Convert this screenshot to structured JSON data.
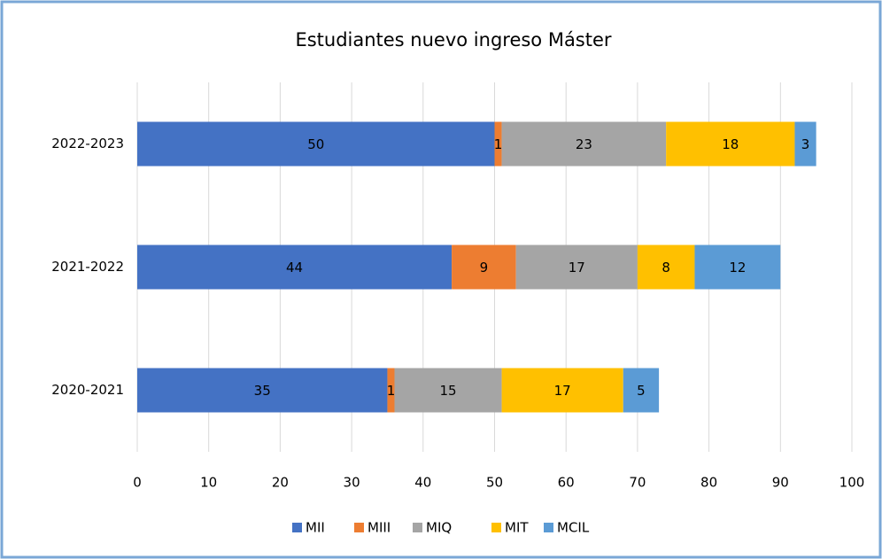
{
  "chart_data": {
    "type": "stacked_bar_horizontal",
    "title": "Estudiantes nuevo ingreso Máster",
    "categories": [
      "2022-2023",
      "2021-2022",
      "2020-2021"
    ],
    "series": [
      {
        "name": "MII",
        "color": "#4472c4",
        "values": [
          50,
          44,
          35
        ]
      },
      {
        "name": "MIII",
        "color": "#ed7d31",
        "values": [
          1,
          9,
          1
        ]
      },
      {
        "name": "MIQ",
        "color": "#a5a5a5",
        "values": [
          23,
          17,
          15
        ]
      },
      {
        "name": "MIT",
        "color": "#ffc000",
        "values": [
          18,
          8,
          17
        ]
      },
      {
        "name": "MCIL",
        "color": "#5b9bd5",
        "values": [
          3,
          12,
          5
        ]
      }
    ],
    "xlim": [
      0,
      100
    ],
    "xticks": [
      0,
      10,
      20,
      30,
      40,
      50,
      60,
      70,
      80,
      90,
      100
    ],
    "grid": true,
    "legend": "bottom"
  }
}
